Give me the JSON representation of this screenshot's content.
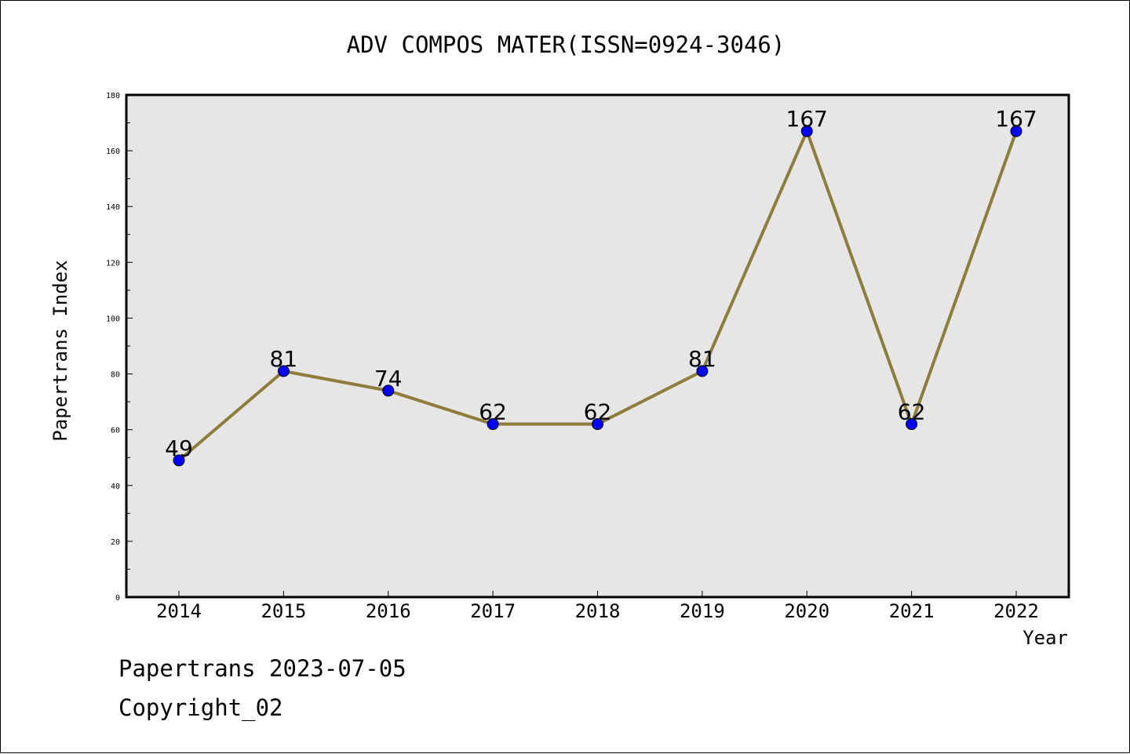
{
  "chart_data": {
    "type": "line",
    "title": "ADV COMPOS MATER(ISSN=0924-3046)",
    "xlabel": "Year",
    "ylabel": "Papertrans Index",
    "categories": [
      "2014",
      "2015",
      "2016",
      "2017",
      "2018",
      "2019",
      "2020",
      "2021",
      "2022"
    ],
    "values": [
      49,
      81,
      74,
      62,
      62,
      81,
      167,
      62,
      167
    ],
    "data_labels": [
      "49",
      "81",
      "74",
      "62",
      "62",
      "81",
      "167",
      "62",
      "167"
    ],
    "ylim": [
      0,
      180
    ],
    "yticks": [
      0,
      20,
      40,
      60,
      80,
      100,
      120,
      140,
      160,
      180
    ],
    "ytick_labels": [
      "0",
      "20",
      "40",
      "60",
      "80",
      "100",
      "120",
      "140",
      "160",
      "180"
    ],
    "grid": false,
    "colors": {
      "line": "#8e7d3a",
      "marker": "#0000ff",
      "plot_background": "#e6e6e6"
    }
  },
  "footer": {
    "date_line": "Papertrans 2023-07-05",
    "copyright": "Copyright_02"
  }
}
